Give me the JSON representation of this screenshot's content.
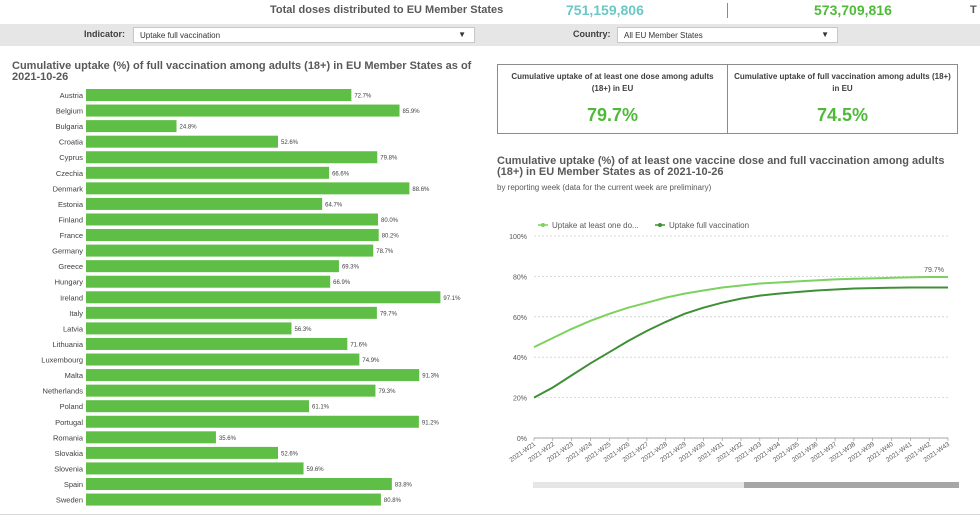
{
  "header": {
    "label": "Total doses distributed to EU Member States",
    "value_1": "751,159,806",
    "value_2": "573,709,816",
    "cut_text": "T"
  },
  "filters": {
    "indicator_label": "Indicator:",
    "indicator_value": "Uptake full vaccination",
    "country_label": "Country:",
    "country_value": "All EU Member States"
  },
  "bar_panel": {
    "title": "Cumulative uptake (%) of full vaccination among adults (18+) in EU Member States as of 2021-10-26"
  },
  "kpis": [
    {
      "title": "Cumulative uptake of at least one dose among adults (18+) in EU",
      "value": "79.7%"
    },
    {
      "title": "Cumulative uptake of full vaccination among adults (18+) in EU",
      "value": "74.5%"
    }
  ],
  "line_panel": {
    "title": "Cumulative uptake (%) of at least one vaccine dose and full vaccination among adults (18+) in EU Member States as of 2021-10-26",
    "subtitle": "by reporting week (data for the current week are preliminary)"
  },
  "colors": {
    "bar": "#5fbe45",
    "line_one_dose": "#7dd15f",
    "line_full": "#3f8f37",
    "accent_teal": "#6cc7c5",
    "accent_green": "#4fba3a"
  },
  "chart_data": [
    {
      "type": "bar",
      "orientation": "horizontal",
      "categories": [
        "Austria",
        "Belgium",
        "Bulgaria",
        "Croatia",
        "Cyprus",
        "Czechia",
        "Denmark",
        "Estonia",
        "Finland",
        "France",
        "Germany",
        "Greece",
        "Hungary",
        "Ireland",
        "Italy",
        "Latvia",
        "Lithuania",
        "Luxembourg",
        "Malta",
        "Netherlands",
        "Poland",
        "Portugal",
        "Romania",
        "Slovakia",
        "Slovenia",
        "Spain",
        "Sweden"
      ],
      "values": [
        72.7,
        85.9,
        24.8,
        52.6,
        79.8,
        66.6,
        88.6,
        64.7,
        80.0,
        80.2,
        78.7,
        69.3,
        66.9,
        97.1,
        79.7,
        56.3,
        71.6,
        74.9,
        91.3,
        79.3,
        61.1,
        91.2,
        35.6,
        52.6,
        59.6,
        83.8,
        80.8
      ],
      "value_labels": [
        "72.7%",
        "85.9%",
        "24.8%",
        "52.6%",
        "79.8%",
        "66.6%",
        "88.6%",
        "64.7%",
        "80.0%",
        "80.2%",
        "78.7%",
        "69.3%",
        "66.9%",
        "97.1%",
        "79.7%",
        "56.3%",
        "71.6%",
        "74.9%",
        "91.3%",
        "79.3%",
        "61.1%",
        "91.2%",
        "35.6%",
        "52.6%",
        "59.6%",
        "83.8%",
        "80.8%"
      ],
      "xlim": [
        0,
        100
      ]
    },
    {
      "type": "line",
      "x": [
        "2021-W21",
        "2021-W22",
        "2021-W23",
        "2021-W24",
        "2021-W25",
        "2021-W26",
        "2021-W27",
        "2021-W28",
        "2021-W29",
        "2021-W30",
        "2021-W31",
        "2021-W32",
        "2021-W33",
        "2021-W34",
        "2021-W35",
        "2021-W36",
        "2021-W37",
        "2021-W38",
        "2021-W39",
        "2021-W40",
        "2021-W41",
        "2021-W42",
        "2021-W43"
      ],
      "series": [
        {
          "name": "Uptake at least one do...",
          "values": [
            45,
            49.5,
            54,
            58,
            61.5,
            64.5,
            67,
            69.5,
            71.5,
            73,
            74.5,
            75.5,
            76.5,
            77,
            77.5,
            78,
            78.5,
            78.8,
            79,
            79.3,
            79.5,
            79.7,
            79.7
          ]
        },
        {
          "name": "Uptake full vaccination",
          "values": [
            20,
            25,
            31,
            37,
            42.5,
            48,
            53,
            57.5,
            61.5,
            64.5,
            67,
            69,
            70.5,
            71.5,
            72.3,
            73,
            73.5,
            74,
            74.2,
            74.4,
            74.5,
            74.5,
            74.5
          ]
        }
      ],
      "end_label": "79.7%",
      "y_ticks": [
        "0%",
        "20%",
        "40%",
        "60%",
        "80%",
        "100%"
      ],
      "ylim": [
        0,
        100
      ],
      "legend": "top-left"
    }
  ]
}
